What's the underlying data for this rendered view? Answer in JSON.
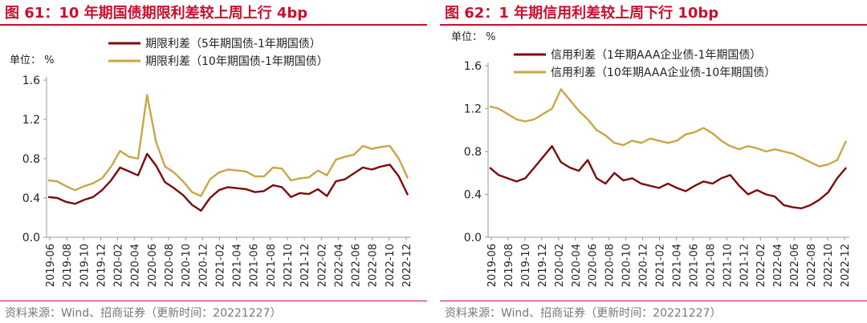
{
  "chart_data": [
    {
      "type": "line",
      "title": "图 61：10 年期国债期限利差较上周上行 4bp",
      "unit_label": "单位：  %",
      "source": "资料来源：Wind、招商证券（更新时间：20221227）",
      "xlabel": "",
      "ylabel": "",
      "ylim": [
        0,
        1.6
      ],
      "yticks": [
        "0.0",
        "0.4",
        "0.8",
        "1.2",
        "1.6"
      ],
      "xticks": [
        "2019-06",
        "2019-08",
        "2019-10",
        "2019-12",
        "2020-02",
        "2020-04",
        "2020-06",
        "2020-08",
        "2020-10",
        "2020-12",
        "2021-02",
        "2021-04",
        "2021-06",
        "2021-08",
        "2021-10",
        "2021-12",
        "2022-02",
        "2022-04",
        "2022-06",
        "2022-08",
        "2022-10",
        "2022-12"
      ],
      "x_start": "2019-06",
      "legend_position": "top-center",
      "series": [
        {
          "name": "期限利差（5年期国债-1年期国债）",
          "color": "#7b0c0c",
          "values": [
            0.41,
            0.4,
            0.36,
            0.34,
            0.38,
            0.41,
            0.48,
            0.58,
            0.71,
            0.67,
            0.63,
            0.85,
            0.73,
            0.56,
            0.5,
            0.43,
            0.33,
            0.27,
            0.4,
            0.48,
            0.51,
            0.5,
            0.49,
            0.46,
            0.47,
            0.53,
            0.51,
            0.41,
            0.45,
            0.44,
            0.49,
            0.42,
            0.57,
            0.59,
            0.65,
            0.71,
            0.69,
            0.72,
            0.74,
            0.62,
            0.43
          ]
        },
        {
          "name": "期限利差（10年期国债-1年期国债）",
          "color": "#c9a646",
          "values": [
            0.58,
            0.57,
            0.52,
            0.48,
            0.52,
            0.55,
            0.6,
            0.72,
            0.88,
            0.82,
            0.8,
            1.45,
            0.97,
            0.72,
            0.66,
            0.57,
            0.46,
            0.42,
            0.59,
            0.66,
            0.69,
            0.68,
            0.67,
            0.62,
            0.62,
            0.71,
            0.7,
            0.58,
            0.6,
            0.61,
            0.68,
            0.63,
            0.79,
            0.82,
            0.84,
            0.93,
            0.9,
            0.92,
            0.93,
            0.8,
            0.6
          ]
        }
      ]
    },
    {
      "type": "line",
      "title": "图 62：1 年期信用利差较上周下行 10bp",
      "unit_label": "单位：  %",
      "source": "资料来源：Wind、招商证券（更新时间：20221227）",
      "xlabel": "",
      "ylabel": "",
      "ylim": [
        0,
        1.6
      ],
      "yticks": [
        "0.0",
        "0.4",
        "0.8",
        "1.2",
        "1.6"
      ],
      "xticks": [
        "2019-06",
        "2019-08",
        "2019-10",
        "2019-12",
        "2020-02",
        "2020-04",
        "2020-06",
        "2020-08",
        "2020-10",
        "2020-12",
        "2021-02",
        "2021-04",
        "2021-06",
        "2021-08",
        "2021-10",
        "2021-12",
        "2022-02",
        "2022-04",
        "2022-06",
        "2022-08",
        "2022-10",
        "2022-12"
      ],
      "x_start": "2019-06",
      "legend_position": "top-center",
      "series": [
        {
          "name": "信用利差（1年期AAA企业债-1年期国债）",
          "color": "#7b0c0c",
          "values": [
            0.65,
            0.58,
            0.55,
            0.52,
            0.55,
            0.65,
            0.75,
            0.85,
            0.7,
            0.65,
            0.62,
            0.72,
            0.55,
            0.5,
            0.6,
            0.53,
            0.55,
            0.5,
            0.48,
            0.46,
            0.5,
            0.46,
            0.43,
            0.48,
            0.52,
            0.5,
            0.55,
            0.58,
            0.48,
            0.4,
            0.44,
            0.4,
            0.38,
            0.3,
            0.28,
            0.27,
            0.3,
            0.35,
            0.42,
            0.55,
            0.65
          ]
        },
        {
          "name": "信用利差（10年期AAA企业债-10年期国债）",
          "color": "#c9a646",
          "values": [
            1.22,
            1.2,
            1.15,
            1.1,
            1.08,
            1.1,
            1.15,
            1.2,
            1.38,
            1.28,
            1.18,
            1.1,
            1.0,
            0.95,
            0.88,
            0.86,
            0.9,
            0.88,
            0.92,
            0.9,
            0.88,
            0.9,
            0.96,
            0.98,
            1.02,
            0.97,
            0.9,
            0.85,
            0.82,
            0.85,
            0.83,
            0.8,
            0.82,
            0.8,
            0.78,
            0.74,
            0.7,
            0.66,
            0.68,
            0.72,
            0.9
          ]
        }
      ]
    }
  ]
}
